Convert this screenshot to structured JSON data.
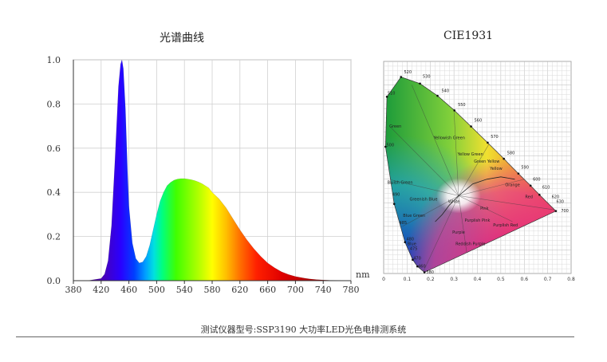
{
  "titles": {
    "spectrum": "光谱曲线",
    "cie": "CIE1931"
  },
  "footer": "测试仪器型号:SSP3190 大功率LED光色电排测系统",
  "chart_data": [
    {
      "type": "area",
      "title": "光谱曲线",
      "xlabel": "nm",
      "ylabel": "",
      "xlim": [
        380,
        780
      ],
      "ylim": [
        0,
        1.0
      ],
      "x_ticks": [
        "380",
        "420",
        "460",
        "500",
        "540",
        "580",
        "620",
        "660",
        "700",
        "740",
        "780"
      ],
      "y_ticks": [
        "0.0",
        "0.2",
        "0.4",
        "0.6",
        "0.8",
        "1.0"
      ],
      "grid": true,
      "series": [
        {
          "x": [
            380,
            400,
            410,
            420,
            425,
            430,
            435,
            440,
            445,
            448,
            450,
            452,
            455,
            458,
            460,
            465,
            470,
            475,
            480,
            485,
            490,
            495,
            500,
            505,
            510,
            515,
            520,
            525,
            530,
            535,
            540,
            545,
            550,
            555,
            560,
            565,
            570,
            575,
            580,
            590,
            600,
            610,
            620,
            630,
            640,
            650,
            660,
            670,
            680,
            690,
            700,
            710,
            720,
            730,
            740,
            750,
            760,
            770,
            780
          ],
          "values": [
            0,
            0,
            0.005,
            0.01,
            0.03,
            0.09,
            0.25,
            0.55,
            0.88,
            0.98,
            1.0,
            0.96,
            0.78,
            0.5,
            0.34,
            0.17,
            0.1,
            0.08,
            0.085,
            0.11,
            0.16,
            0.23,
            0.3,
            0.36,
            0.4,
            0.43,
            0.445,
            0.455,
            0.46,
            0.462,
            0.462,
            0.46,
            0.457,
            0.453,
            0.447,
            0.44,
            0.43,
            0.42,
            0.4,
            0.37,
            0.33,
            0.28,
            0.23,
            0.185,
            0.145,
            0.11,
            0.08,
            0.058,
            0.04,
            0.028,
            0.019,
            0.013,
            0.008,
            0.005,
            0.003,
            0.002,
            0.001,
            0.0005,
            0
          ]
        }
      ]
    },
    {
      "type": "scatter",
      "title": "CIE1931",
      "xlim": [
        0,
        0.8
      ],
      "ylim": [
        0,
        0.9
      ],
      "x_ticks": [
        "0",
        "0.1",
        "0.2",
        "0.3",
        "0.4",
        "0.5",
        "0.6",
        "0.7",
        "0.8"
      ],
      "grid": true,
      "wavelength_labels": [
        "380",
        "460",
        "470",
        "475",
        "480",
        "485",
        "490",
        "500",
        "510",
        "520",
        "530",
        "540",
        "550",
        "560",
        "570",
        "580",
        "590",
        "600",
        "610",
        "620",
        "630",
        "700"
      ],
      "region_labels": [
        "Green",
        "Yellowish Green",
        "Yellow Green",
        "Bluish Green",
        "Green Yellow",
        "Yellow",
        "Orange",
        "Red",
        "Blue Green",
        "Purple",
        "Blue",
        "Pink",
        "Purplish Pink",
        "Reddish Purple",
        "Purplish Red",
        "White",
        "Greenish Blue"
      ]
    }
  ]
}
